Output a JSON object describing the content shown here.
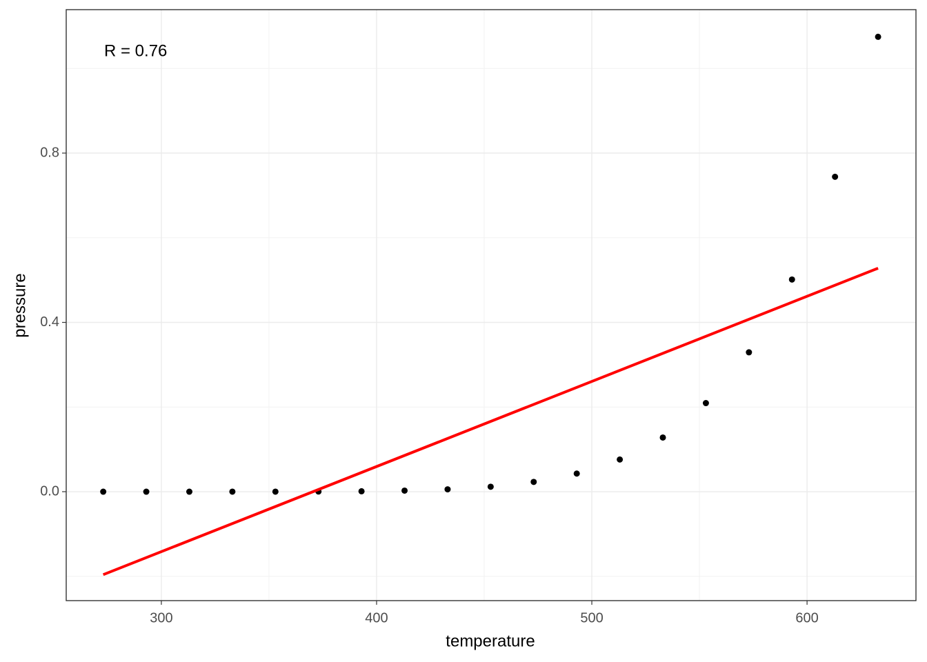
{
  "chart_data": {
    "type": "scatter",
    "annotation": "R = 0.76",
    "x_label": "temperature",
    "y_label": "pressure",
    "x": [
      273,
      293,
      313,
      333,
      353,
      373,
      393,
      413,
      433,
      453,
      473,
      493,
      513,
      533,
      553,
      573,
      593,
      613,
      633
    ],
    "series": [
      {
        "type": "scatter",
        "color": "#000000",
        "values": [
          3e-07,
          1.6e-06,
          8e-06,
          4e-05,
          0.00012,
          0.00036,
          0.001,
          0.0025,
          0.0056,
          0.0117,
          0.0231,
          0.0428,
          0.076,
          0.128,
          0.2093,
          0.3293,
          0.5013,
          0.744,
          1.0747
        ]
      },
      {
        "type": "line",
        "color": "#ff0000",
        "x": [
          273,
          633
        ],
        "values": [
          -0.196,
          0.528
        ]
      }
    ],
    "xlim": [
      255.8,
      650.6
    ],
    "ylim": [
      -0.2574,
      1.1389
    ],
    "xticks": [
      300,
      400,
      500,
      600
    ],
    "yticks": [
      {
        "value": 0,
        "label": "0.0"
      },
      0.4,
      0.8
    ],
    "xminor": [
      350,
      450,
      550
    ],
    "yminor": [
      -0.2,
      0.2,
      0.6,
      1.0
    ],
    "grid": true
  }
}
